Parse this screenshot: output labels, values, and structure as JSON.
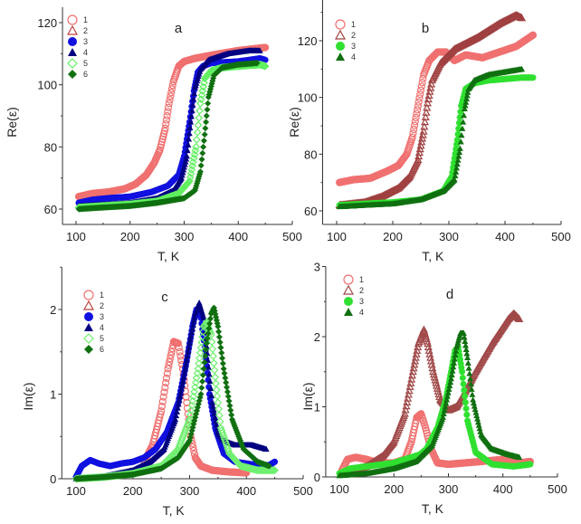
{
  "chart_data": [
    {
      "type": "scatter",
      "panel": "a",
      "title": "a",
      "xlabel": "T, K",
      "ylabel": "Re(ε)",
      "xlim": [
        75,
        500
      ],
      "ylim": [
        55,
        125
      ],
      "xticks": [
        100,
        200,
        300,
        400,
        500
      ],
      "yticks": [
        60,
        80,
        100,
        120
      ],
      "legend_placement": "top-left",
      "series": [
        {
          "name": "1",
          "color": "#f07070",
          "marker": "circle-open",
          "x": [
            105,
            130,
            160,
            190,
            210,
            230,
            245,
            255,
            265,
            272,
            280,
            290,
            300,
            320,
            350,
            400,
            450
          ],
          "y": [
            64,
            65,
            65.5,
            66.5,
            68,
            71,
            75,
            79,
            86,
            94,
            101,
            106,
            107.5,
            108.5,
            109.5,
            111,
            112
          ]
        },
        {
          "name": "2",
          "color": "#c04040",
          "marker": "triangle-open",
          "x": [],
          "y": []
        },
        {
          "name": "3",
          "color": "#1010e0",
          "marker": "circle-filled",
          "x": [
            105,
            130,
            160,
            200,
            240,
            270,
            290,
            300,
            310,
            318,
            325,
            335,
            350,
            400,
            440,
            450
          ],
          "y": [
            62,
            63,
            63.5,
            64,
            65.5,
            67.5,
            71,
            77,
            88,
            98,
            104,
            106,
            107,
            107.5,
            108.5,
            108
          ]
        },
        {
          "name": "4",
          "color": "#000080",
          "marker": "triangle-filled",
          "x": [
            105,
            150,
            200,
            250,
            280,
            295,
            305,
            312,
            320,
            330,
            345,
            380,
            420,
            440
          ],
          "y": [
            61,
            61.5,
            62,
            63.5,
            66,
            70,
            77,
            88,
            99,
            105,
            108,
            110,
            111,
            111
          ]
        },
        {
          "name": "5",
          "color": "#60f060",
          "marker": "diamond-open",
          "x": [
            105,
            150,
            200,
            250,
            290,
            310,
            322,
            330,
            338,
            350,
            370,
            400,
            440,
            450
          ],
          "y": [
            60.5,
            61,
            61.5,
            62.5,
            65,
            69,
            80,
            94,
            102,
            104.5,
            105.5,
            106,
            106.5,
            106
          ]
        },
        {
          "name": "6",
          "color": "#107010",
          "marker": "diamond-filled",
          "x": [
            105,
            150,
            200,
            250,
            300,
            320,
            330,
            338,
            345,
            355,
            370,
            400,
            435
          ],
          "y": [
            60,
            60.5,
            61,
            62,
            63.5,
            66,
            72,
            84,
            96,
            103,
            105.5,
            106.5,
            107
          ]
        }
      ]
    },
    {
      "type": "scatter",
      "panel": "b",
      "title": "b",
      "xlabel": "T, K",
      "ylabel": "Re(ε)",
      "xlim": [
        75,
        500
      ],
      "ylim": [
        55,
        135
      ],
      "xticks": [
        100,
        200,
        300,
        400,
        500
      ],
      "yticks": [
        60,
        80,
        100,
        120
      ],
      "legend_placement": "top-left",
      "series": [
        {
          "name": "1",
          "color": "#f07070",
          "marker": "circle-open",
          "x": [
            105,
            130,
            160,
            190,
            210,
            225,
            235,
            245,
            255,
            265,
            280,
            295,
            310,
            330,
            360,
            390,
            420,
            450
          ],
          "y": [
            70,
            71,
            71.5,
            74,
            76,
            80,
            86,
            97,
            108,
            113,
            116,
            116,
            113,
            115,
            114,
            116,
            118,
            122
          ]
        },
        {
          "name": "2",
          "color": "#a04040",
          "marker": "triangle-open",
          "x": [
            105,
            150,
            180,
            210,
            230,
            245,
            255,
            262,
            270,
            285,
            310,
            350,
            390,
            420,
            430
          ],
          "y": [
            62,
            63,
            65,
            68,
            72,
            78,
            88,
            98,
            106,
            112,
            117,
            121,
            126,
            129,
            128
          ]
        },
        {
          "name": "3",
          "color": "#30e030",
          "marker": "circle-filled",
          "x": [
            105,
            150,
            200,
            250,
            290,
            305,
            315,
            322,
            330,
            345,
            370,
            400,
            430,
            450
          ],
          "y": [
            62,
            62.5,
            63,
            64,
            67,
            72,
            85,
            97,
            103,
            105,
            106,
            106.5,
            107,
            107
          ]
        },
        {
          "name": "4",
          "color": "#107010",
          "marker": "triangle-filled",
          "x": [
            105,
            150,
            200,
            250,
            290,
            310,
            320,
            328,
            335,
            345,
            370,
            400,
            430
          ],
          "y": [
            61.5,
            62,
            62.5,
            64,
            67,
            71,
            82,
            96,
            103,
            106,
            108,
            109,
            110
          ]
        }
      ]
    },
    {
      "type": "scatter",
      "panel": "c",
      "title": "c",
      "xlabel": "T, K",
      "ylabel": "Im(ε)",
      "xlim": [
        75,
        500
      ],
      "ylim": [
        0,
        2.5
      ],
      "xticks": [
        100,
        200,
        300,
        400,
        500
      ],
      "yticks": [
        0,
        1,
        2
      ],
      "legend_placement": "top-left",
      "series": [
        {
          "name": "1",
          "color": "#f07070",
          "marker": "circle-open",
          "x": [
            220,
            235,
            250,
            262,
            272,
            280,
            288,
            295,
            302,
            310,
            320,
            340,
            370,
            400
          ],
          "y": [
            0.2,
            0.4,
            0.8,
            1.3,
            1.62,
            1.6,
            1.3,
            0.9,
            0.5,
            0.25,
            0.15,
            0.1,
            0.08,
            0.07
          ]
        },
        {
          "name": "2",
          "color": "#c04040",
          "marker": "triangle-open",
          "x": [],
          "y": []
        },
        {
          "name": "3",
          "color": "#1010e0",
          "marker": "circle-filled",
          "x": [
            100,
            110,
            125,
            140,
            160,
            180,
            200,
            220,
            240,
            260,
            280,
            295,
            305,
            312,
            320,
            328,
            335,
            345,
            360,
            380,
            410,
            440,
            450
          ],
          "y": [
            0.02,
            0.15,
            0.22,
            0.18,
            0.15,
            0.18,
            0.2,
            0.25,
            0.35,
            0.55,
            0.9,
            1.4,
            1.8,
            2.0,
            1.9,
            1.5,
            1.0,
            0.6,
            0.3,
            0.2,
            0.17,
            0.16,
            0.2
          ]
        },
        {
          "name": "4",
          "color": "#000080",
          "marker": "triangle-filled",
          "x": [
            100,
            150,
            200,
            230,
            255,
            275,
            290,
            300,
            310,
            317,
            325,
            332,
            340,
            350,
            360,
            380,
            410,
            435
          ],
          "y": [
            0,
            0.03,
            0.1,
            0.2,
            0.35,
            0.7,
            1.2,
            1.6,
            1.95,
            2.08,
            1.9,
            1.4,
            0.9,
            0.55,
            0.45,
            0.4,
            0.4,
            0.35
          ]
        },
        {
          "name": "5",
          "color": "#70f070",
          "marker": "diamond-open",
          "x": [
            100,
            150,
            200,
            250,
            280,
            300,
            315,
            325,
            330,
            338,
            345,
            355,
            370,
            390,
            420,
            450
          ],
          "y": [
            0,
            0.02,
            0.06,
            0.15,
            0.35,
            0.7,
            1.3,
            1.8,
            1.85,
            1.7,
            1.2,
            0.6,
            0.3,
            0.15,
            0.1,
            0.1
          ]
        },
        {
          "name": "6",
          "color": "#107010",
          "marker": "diamond-filled",
          "x": [
            100,
            150,
            200,
            250,
            280,
            300,
            320,
            330,
            338,
            343,
            350,
            360,
            375,
            395,
            420,
            440
          ],
          "y": [
            0,
            0.02,
            0.05,
            0.12,
            0.25,
            0.45,
            1.0,
            1.6,
            1.95,
            2.02,
            1.8,
            1.3,
            0.7,
            0.35,
            0.2,
            0.15
          ]
        }
      ]
    },
    {
      "type": "scatter",
      "panel": "d",
      "title": "d",
      "xlabel": "T, K",
      "ylabel": "Im(ε)",
      "xlim": [
        75,
        500
      ],
      "ylim": [
        0,
        3
      ],
      "xticks": [
        100,
        200,
        300,
        400,
        500
      ],
      "yticks": [
        0,
        1,
        2,
        3
      ],
      "legend_placement": "top-left",
      "series": [
        {
          "name": "1",
          "color": "#f07070",
          "marker": "circle-open",
          "x": [
            105,
            115,
            130,
            150,
            170,
            200,
            220,
            232,
            242,
            250,
            258,
            268,
            280,
            300,
            330,
            360,
            400,
            430,
            450
          ],
          "y": [
            0.1,
            0.25,
            0.28,
            0.25,
            0.2,
            0.2,
            0.25,
            0.5,
            0.85,
            0.9,
            0.7,
            0.4,
            0.2,
            0.18,
            0.2,
            0.22,
            0.25,
            0.2,
            0.22
          ]
        },
        {
          "name": "2",
          "color": "#a04848",
          "marker": "triangle-open",
          "x": [
            105,
            150,
            180,
            200,
            220,
            235,
            245,
            255,
            262,
            272,
            285,
            300,
            315,
            330,
            350,
            380,
            410,
            420,
            430
          ],
          "y": [
            0.05,
            0.15,
            0.3,
            0.5,
            0.9,
            1.5,
            1.9,
            2.1,
            1.9,
            1.5,
            1.1,
            0.95,
            1.0,
            1.2,
            1.5,
            1.9,
            2.25,
            2.33,
            2.25
          ]
        },
        {
          "name": "3",
          "color": "#30e030",
          "marker": "circle-filled",
          "x": [
            100,
            120,
            150,
            200,
            240,
            248,
            260,
            280,
            295,
            305,
            312,
            318,
            325,
            335,
            350,
            380,
            420,
            450
          ],
          "y": [
            0.05,
            0.12,
            0.15,
            0.2,
            0.3,
            0.32,
            0.4,
            0.7,
            1.1,
            1.5,
            1.8,
            1.85,
            1.5,
            0.8,
            0.35,
            0.18,
            0.15,
            0.18
          ]
        },
        {
          "name": "4",
          "color": "#107010",
          "marker": "triangle-filled",
          "x": [
            100,
            150,
            200,
            240,
            270,
            290,
            305,
            315,
            322,
            328,
            335,
            345,
            360,
            380,
            410,
            430
          ],
          "y": [
            0.02,
            0.05,
            0.12,
            0.22,
            0.45,
            0.85,
            1.4,
            1.85,
            2.05,
            2.05,
            1.7,
            1.1,
            0.6,
            0.4,
            0.32,
            0.28
          ]
        }
      ]
    }
  ]
}
